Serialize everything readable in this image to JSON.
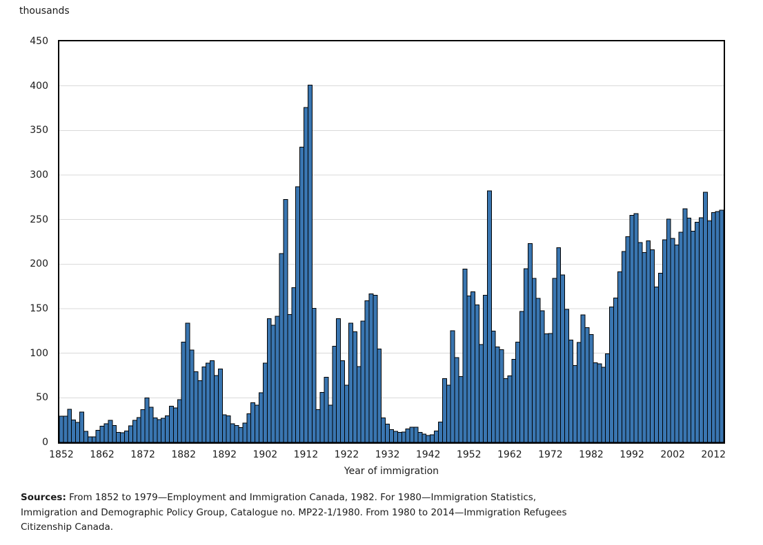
{
  "figure": {
    "unit_label": "thousands",
    "x_axis_title": "Year of immigration",
    "footer": {
      "label": "Sources:",
      "line1": "From 1852 to 1979—Employment and Immigration Canada, 1982. For 1980—Immigration Statistics,",
      "line2": "Immigration and Demographic Policy Group, Catalogue no. MP22-1/1980. From 1980 to 2014—Immigration Refugees",
      "line3": "Citizenship Canada."
    }
  },
  "chart_data": {
    "type": "bar",
    "title": "",
    "ylabel": "thousands",
    "xlabel": "Year of immigration",
    "ylim": [
      0,
      450
    ],
    "y_ticks": [
      0,
      50,
      100,
      150,
      200,
      250,
      300,
      350,
      400,
      450
    ],
    "x_tick_years": [
      1852,
      1862,
      1872,
      1882,
      1892,
      1902,
      1912,
      1922,
      1932,
      1942,
      1952,
      1962,
      1972,
      1982,
      1992,
      2002,
      2012
    ],
    "grid": "horizontal",
    "grid_color": "#d9d9d9",
    "bar_color": "#3a76b1",
    "bar_border_color": "#000000",
    "frame_color": "#000000",
    "x_start_year": 1852,
    "x_end_year": 2014,
    "years": [
      1852,
      1853,
      1854,
      1855,
      1856,
      1857,
      1858,
      1859,
      1860,
      1861,
      1862,
      1863,
      1864,
      1865,
      1866,
      1867,
      1868,
      1869,
      1870,
      1871,
      1872,
      1873,
      1874,
      1875,
      1876,
      1877,
      1878,
      1879,
      1880,
      1881,
      1882,
      1883,
      1884,
      1885,
      1886,
      1887,
      1888,
      1889,
      1890,
      1891,
      1892,
      1893,
      1894,
      1895,
      1896,
      1897,
      1898,
      1899,
      1900,
      1901,
      1902,
      1903,
      1904,
      1905,
      1906,
      1907,
      1908,
      1909,
      1910,
      1911,
      1912,
      1913,
      1914,
      1915,
      1916,
      1917,
      1918,
      1919,
      1920,
      1921,
      1922,
      1923,
      1924,
      1925,
      1926,
      1927,
      1928,
      1929,
      1930,
      1931,
      1932,
      1933,
      1934,
      1935,
      1936,
      1937,
      1938,
      1939,
      1940,
      1941,
      1942,
      1943,
      1944,
      1945,
      1946,
      1947,
      1948,
      1949,
      1950,
      1951,
      1952,
      1953,
      1954,
      1955,
      1956,
      1957,
      1958,
      1959,
      1960,
      1961,
      1962,
      1963,
      1964,
      1965,
      1966,
      1967,
      1968,
      1969,
      1970,
      1971,
      1972,
      1973,
      1974,
      1975,
      1976,
      1977,
      1978,
      1979,
      1980,
      1981,
      1982,
      1983,
      1984,
      1985,
      1986,
      1987,
      1988,
      1989,
      1990,
      1991,
      1992,
      1993,
      1994,
      1995,
      1996,
      1997,
      1998,
      1999,
      2000,
      2001,
      2002,
      2003,
      2004,
      2005,
      2006,
      2007,
      2008,
      2009,
      2010,
      2011,
      2012,
      2013,
      2014
    ],
    "values": [
      29.3,
      29.5,
      37.3,
      25.3,
      22.5,
      33.9,
      12.3,
      6.3,
      6.3,
      13.6,
      18.3,
      21.0,
      24.8,
      18.9,
      11.4,
      10.7,
      12.8,
      18.6,
      24.7,
      27.8,
      36.6,
      50.0,
      39.4,
      27.4,
      25.6,
      27.1,
      29.8,
      40.5,
      38.5,
      47.9,
      112.5,
      133.6,
      103.8,
      79.2,
      69.2,
      84.5,
      88.8,
      91.6,
      75.1,
      82.2,
      30.9,
      29.6,
      20.8,
      18.8,
      16.8,
      21.7,
      31.9,
      44.5,
      41.7,
      55.7,
      89.1,
      138.7,
      131.3,
      141.5,
      211.7,
      272.4,
      143.3,
      173.7,
      286.8,
      331.3,
      375.8,
      400.9,
      150.5,
      36.7,
      55.9,
      72.9,
      41.8,
      107.7,
      138.8,
      91.7,
      64.2,
      133.7,
      124.2,
      84.9,
      135.9,
      158.9,
      166.8,
      164.9,
      104.8,
      27.5,
      20.6,
      14.4,
      12.5,
      11.3,
      11.6,
      15.1,
      17.2,
      16.9,
      11.3,
      9.3,
      7.6,
      8.5,
      12.8,
      22.7,
      71.7,
      64.1,
      125.4,
      95.2,
      73.9,
      194.4,
      164.5,
      168.9,
      154.2,
      109.9,
      164.9,
      282.2,
      124.9,
      106.9,
      104.1,
      71.7,
      74.6,
      93.2,
      112.6,
      146.8,
      194.7,
      222.9,
      183.9,
      161.5,
      147.7,
      121.9,
      122.0,
      184.2,
      218.5,
      187.9,
      149.4,
      114.9,
      86.3,
      112.1,
      143.1,
      128.6,
      121.2,
      89.2,
      88.3,
      84.3,
      99.2,
      152.1,
      161.9,
      191.5,
      214.2,
      230.8,
      254.8,
      256.6,
      224.4,
      212.9,
      226.1,
      216.0,
      174.2,
      190.0,
      227.5,
      250.6,
      229.0,
      221.4,
      235.8,
      262.2,
      251.6,
      236.8,
      247.2,
      252.2,
      280.7,
      248.7,
      257.9,
      259.0,
      260.4
    ]
  }
}
